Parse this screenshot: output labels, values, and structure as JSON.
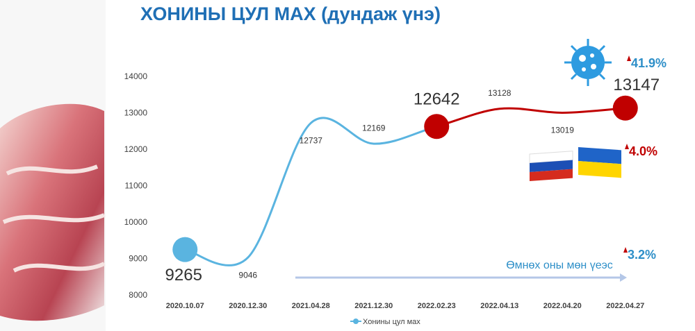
{
  "chart_data": {
    "type": "line",
    "title": "ХОНИНЫ ЦУЛ МАХ (дундаж үнэ)",
    "categories": [
      "2020.10.07",
      "2020.12.30",
      "2021.04.28",
      "2021.12.30",
      "2022.02.23",
      "2022.04.13",
      "2022.04.20",
      "2022.04.27"
    ],
    "series": [
      {
        "name": "Хонины цул мах",
        "color": "#5ab4e0",
        "values": [
          9265,
          9046,
          12737,
          12169,
          12642,
          13128,
          13019,
          13147
        ]
      }
    ],
    "highlight_color": "#c00000",
    "highlight_from": "2022.02.23",
    "ylim": [
      8000,
      14000
    ],
    "yticks": [
      8000,
      9000,
      10000,
      11000,
      12000,
      13000,
      14000
    ],
    "legend": "bottom",
    "annotations": [
      {
        "text": "41.9%",
        "color": "#2e8fc8"
      },
      {
        "text": "4.0%",
        "color": "#c00000"
      },
      {
        "text": "3.2%",
        "color": "#2e8fc8"
      },
      {
        "text": "Өмнөх оны мөн үеэс",
        "color": "#2e8fc8"
      }
    ]
  }
}
